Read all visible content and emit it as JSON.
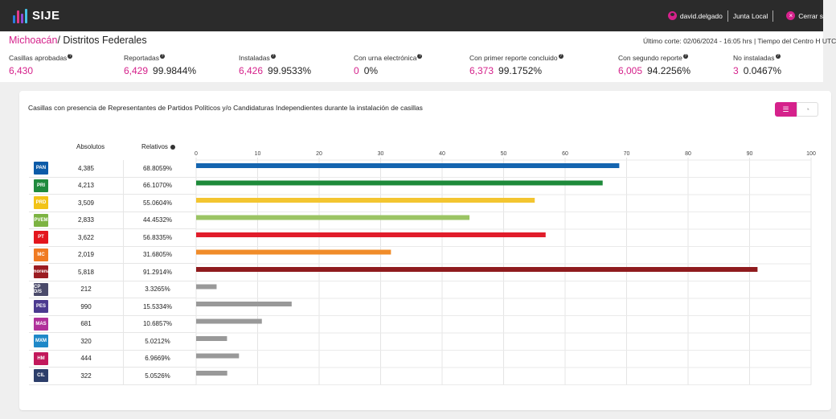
{
  "app": {
    "name": "SIJE",
    "logo_colors": [
      "#2a7de1",
      "#e33a8a",
      "#8e4bd8",
      "#44c1e6"
    ]
  },
  "topbar": {
    "user": "david.delgado",
    "role": "Junta Local",
    "logout": "Cerrar s"
  },
  "header": {
    "state": "Michoacán",
    "section": "/ Distritos Federales",
    "cutoff": "Último corte: 02/06/2024 - 16:05 hrs  |  Tiempo del Centro H UTC"
  },
  "stats": [
    {
      "label": "Casillas aprobadas",
      "number": "6,430",
      "percent": ""
    },
    {
      "label": "Reportadas",
      "number": "6,429",
      "percent": "99.9844%"
    },
    {
      "label": "Instaladas",
      "number": "6,426",
      "percent": "99.9533%"
    },
    {
      "label": "Con urna electrónica",
      "number": "0",
      "percent": "0%"
    },
    {
      "label": "Con primer reporte concluido",
      "number": "6,373",
      "percent": "99.1752%"
    },
    {
      "label": "Con segundo reporte",
      "number": "6,005",
      "percent": "94.2256%"
    },
    {
      "label": "No instaladas",
      "number": "3",
      "percent": "0.0467%"
    }
  ],
  "card": {
    "title": "Casillas con presencia de Representantes de Partidos Políticos y/o Candidaturas Independientes durante la instalación de casillas",
    "col_absolutos": "Absolutos",
    "col_relativos": "Relativos"
  },
  "parties": [
    {
      "logo": "PAN",
      "logo_color": "#0b5aa8",
      "absolutos": "4,385",
      "relativos": "68.8059%"
    },
    {
      "logo": "PRI",
      "logo_color": "#1f8a3d",
      "absolutos": "4,213",
      "relativos": "66.1070%"
    },
    {
      "logo": "PRD",
      "logo_color": "#f2c318",
      "absolutos": "3,509",
      "relativos": "55.0604%"
    },
    {
      "logo": "PVEM",
      "logo_color": "#7cb342",
      "absolutos": "2,833",
      "relativos": "44.4532%"
    },
    {
      "logo": "PT",
      "logo_color": "#e3161d",
      "absolutos": "3,622",
      "relativos": "56.8335%"
    },
    {
      "logo": "MC",
      "logo_color": "#f07b22",
      "absolutos": "2,019",
      "relativos": "31.6805%"
    },
    {
      "logo": "morena",
      "logo_color": "#9b1c22",
      "absolutos": "5,818",
      "relativos": "91.2914%"
    },
    {
      "logo": "CP D/S",
      "logo_color": "#4a4a6a",
      "absolutos": "212",
      "relativos": "3.3265%"
    },
    {
      "logo": "PES",
      "logo_color": "#4b3a8f",
      "absolutos": "990",
      "relativos": "15.5334%"
    },
    {
      "logo": "MAS",
      "logo_color": "#b0309a",
      "absolutos": "681",
      "relativos": "10.6857%"
    },
    {
      "logo": "MXM",
      "logo_color": "#1e88c8",
      "absolutos": "320",
      "relativos": "5.0212%"
    },
    {
      "logo": "HM",
      "logo_color": "#c2185b",
      "absolutos": "444",
      "relativos": "6.9669%"
    },
    {
      "logo": "CIL",
      "logo_color": "#2c3e6a",
      "absolutos": "322",
      "relativos": "5.0526%"
    }
  ],
  "chart_data": {
    "type": "bar",
    "orientation": "horizontal",
    "x_ticks": [
      "0",
      "10",
      "20",
      "30",
      "40",
      "50",
      "60",
      "70",
      "80",
      "90",
      "100"
    ],
    "xlim": [
      0,
      100
    ],
    "grid": true,
    "values": [
      68.8059,
      66.107,
      55.0604,
      44.4532,
      56.8335,
      31.6805,
      91.2914,
      3.3265,
      15.5334,
      10.6857,
      5.0212,
      6.9669,
      5.0526
    ],
    "colors": [
      "#1565b0",
      "#1e8a3a",
      "#f3c530",
      "#9bc464",
      "#e11d2b",
      "#f08c2a",
      "#8f1b1e",
      "#999999",
      "#999999",
      "#999999",
      "#999999",
      "#999999",
      "#999999"
    ]
  }
}
